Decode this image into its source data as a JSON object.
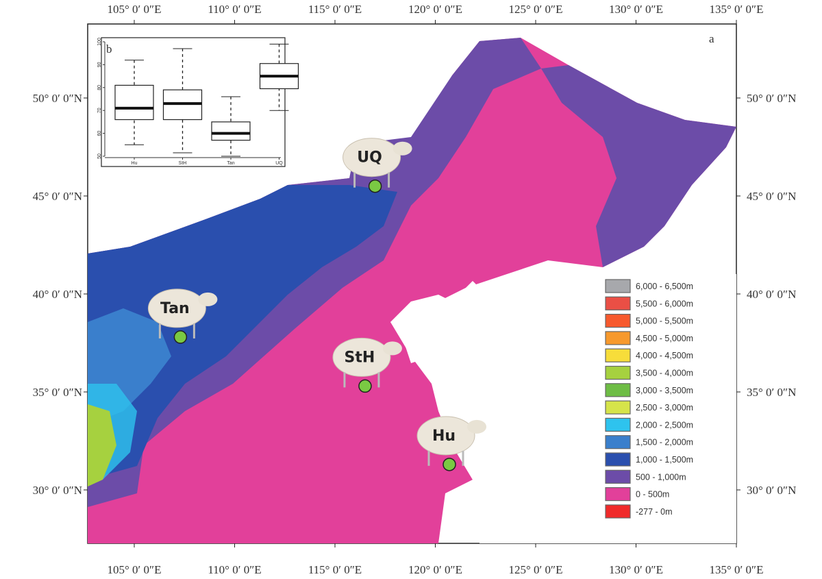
{
  "map": {
    "panel_label": "a",
    "longitude_labels": [
      {
        "deg": 105,
        "text": "105°  0′ 0″E"
      },
      {
        "deg": 110,
        "text": "110°  0′ 0″E"
      },
      {
        "deg": 115,
        "text": "115°  0′ 0″E"
      },
      {
        "deg": 120,
        "text": "120°  0′ 0″E"
      },
      {
        "deg": 125,
        "text": "125°  0′ 0″E"
      },
      {
        "deg": 130,
        "text": "130°  0′ 0″E"
      },
      {
        "deg": 135,
        "text": "135°  0′ 0″E"
      }
    ],
    "latitude_labels": [
      {
        "deg": 50,
        "text": "50°  0′ 0″N"
      },
      {
        "deg": 45,
        "text": "45°  0′ 0″N"
      },
      {
        "deg": 40,
        "text": "40°  0′ 0″N"
      },
      {
        "deg": 35,
        "text": "35°  0′ 0″N"
      },
      {
        "deg": 30,
        "text": "30°  0′ 0″N"
      }
    ],
    "sites": [
      {
        "name": "UQ",
        "lon": 117.0,
        "lat": 45.5
      },
      {
        "name": "Tan",
        "lon": 107.3,
        "lat": 37.8
      },
      {
        "name": "StH",
        "lon": 116.5,
        "lat": 35.3
      },
      {
        "name": "Hu",
        "lon": 120.7,
        "lat": 31.3
      }
    ],
    "site_marker_color": "#7ac943",
    "legend": [
      {
        "label": "6,000 - 6,500m",
        "color": "#a7a8ac"
      },
      {
        "label": "5,500 - 6,000m",
        "color": "#ea4f45"
      },
      {
        "label": "5,000 - 5,500m",
        "color": "#f75a2e"
      },
      {
        "label": "4,500 - 5,000m",
        "color": "#f7992d"
      },
      {
        "label": "4,000 - 4,500m",
        "color": "#f7dd3a"
      },
      {
        "label": "3,500 - 4,000m",
        "color": "#a6d13f"
      },
      {
        "label": "3,000 - 3,500m",
        "color": "#6ebd45"
      },
      {
        "label": "2,500 - 3,000m",
        "color": "#d6e44a"
      },
      {
        "label": "2,000 - 2,500m",
        "color": "#2ec3ee"
      },
      {
        "label": "1,500 - 2,000m",
        "color": "#3a7fcc"
      },
      {
        "label": "1,000 - 1,500m",
        "color": "#2a4fae"
      },
      {
        "label": "500 - 1,000m",
        "color": "#6c4ca8"
      },
      {
        "label": "0 - 500m",
        "color": "#e2409a"
      },
      {
        "label": "-277 - 0m",
        "color": "#f02a2a"
      }
    ]
  },
  "inset": {
    "panel_label": "b",
    "type": "boxplot",
    "ylim": [
      50,
      100
    ],
    "yticks": [
      "50",
      "60",
      "70",
      "80",
      "90",
      "100"
    ],
    "categories": [
      "Hu",
      "StH",
      "Tan",
      "UQ"
    ],
    "boxes": [
      {
        "name": "Hu",
        "min": 55,
        "q1": 66,
        "median": 71,
        "q3": 81,
        "max": 92
      },
      {
        "name": "StH",
        "min": 51.5,
        "q1": 66,
        "median": 73,
        "q3": 79,
        "max": 97
      },
      {
        "name": "Tan",
        "min": 50,
        "q1": 57,
        "median": 60,
        "q3": 65,
        "max": 76
      },
      {
        "name": "UQ",
        "min": 70,
        "q1": 79.5,
        "median": 85,
        "q3": 90.5,
        "max": 99
      }
    ]
  }
}
